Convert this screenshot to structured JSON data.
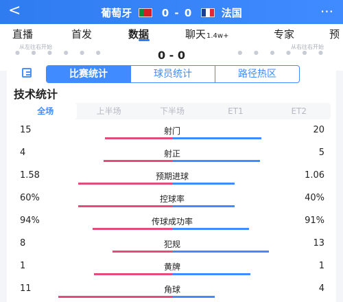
{
  "header": {
    "back": "<",
    "home_team": "葡萄牙",
    "away_team": "法国",
    "home_score": "0",
    "away_score": "0",
    "separator": "-",
    "more": "···"
  },
  "tabs": [
    {
      "label": "直播"
    },
    {
      "label": "首发"
    },
    {
      "label": "数据"
    },
    {
      "label": "聊天",
      "badge": "1.4w+"
    },
    {
      "label": "专家"
    },
    {
      "label": "预"
    }
  ],
  "lineups": {
    "left_label": "从左往右开始",
    "right_label": "从右往右开始",
    "dots_left": "● ● ● ● ● ●",
    "dots_right": "● ● ● ● ● ●",
    "score": "0 - 0"
  },
  "panel": {
    "segments": [
      "比赛统计",
      "球员统计",
      "路径热区"
    ],
    "section_title": "技术统计",
    "subtabs": [
      "全场",
      "上半场",
      "下半场",
      "ET1",
      "ET2"
    ]
  },
  "stats": [
    {
      "name": "射门",
      "home": "15",
      "away": "20",
      "home_pct": 0.43,
      "away_pct": 0.57
    },
    {
      "name": "射正",
      "home": "4",
      "away": "5",
      "home_pct": 0.44,
      "away_pct": 0.56
    },
    {
      "name": "预期进球",
      "home": "1.58",
      "away": "1.06",
      "home_pct": 0.6,
      "away_pct": 0.4
    },
    {
      "name": "控球率",
      "home": "60%",
      "away": "40%",
      "home_pct": 0.6,
      "away_pct": 0.4
    },
    {
      "name": "传球成功率",
      "home": "94%",
      "away": "91%",
      "home_pct": 0.51,
      "away_pct": 0.49
    },
    {
      "name": "犯规",
      "home": "8",
      "away": "13",
      "home_pct": 0.38,
      "away_pct": 0.62
    },
    {
      "name": "黄牌",
      "home": "1",
      "away": "1",
      "home_pct": 0.5,
      "away_pct": 0.5
    },
    {
      "name": "角球",
      "home": "11",
      "away": "4",
      "home_pct": 0.73,
      "away_pct": 0.27
    }
  ],
  "colors": {
    "accent": "#3f8bff",
    "home_bar": "#e34b7b",
    "away_bar": "#3f8bff"
  }
}
